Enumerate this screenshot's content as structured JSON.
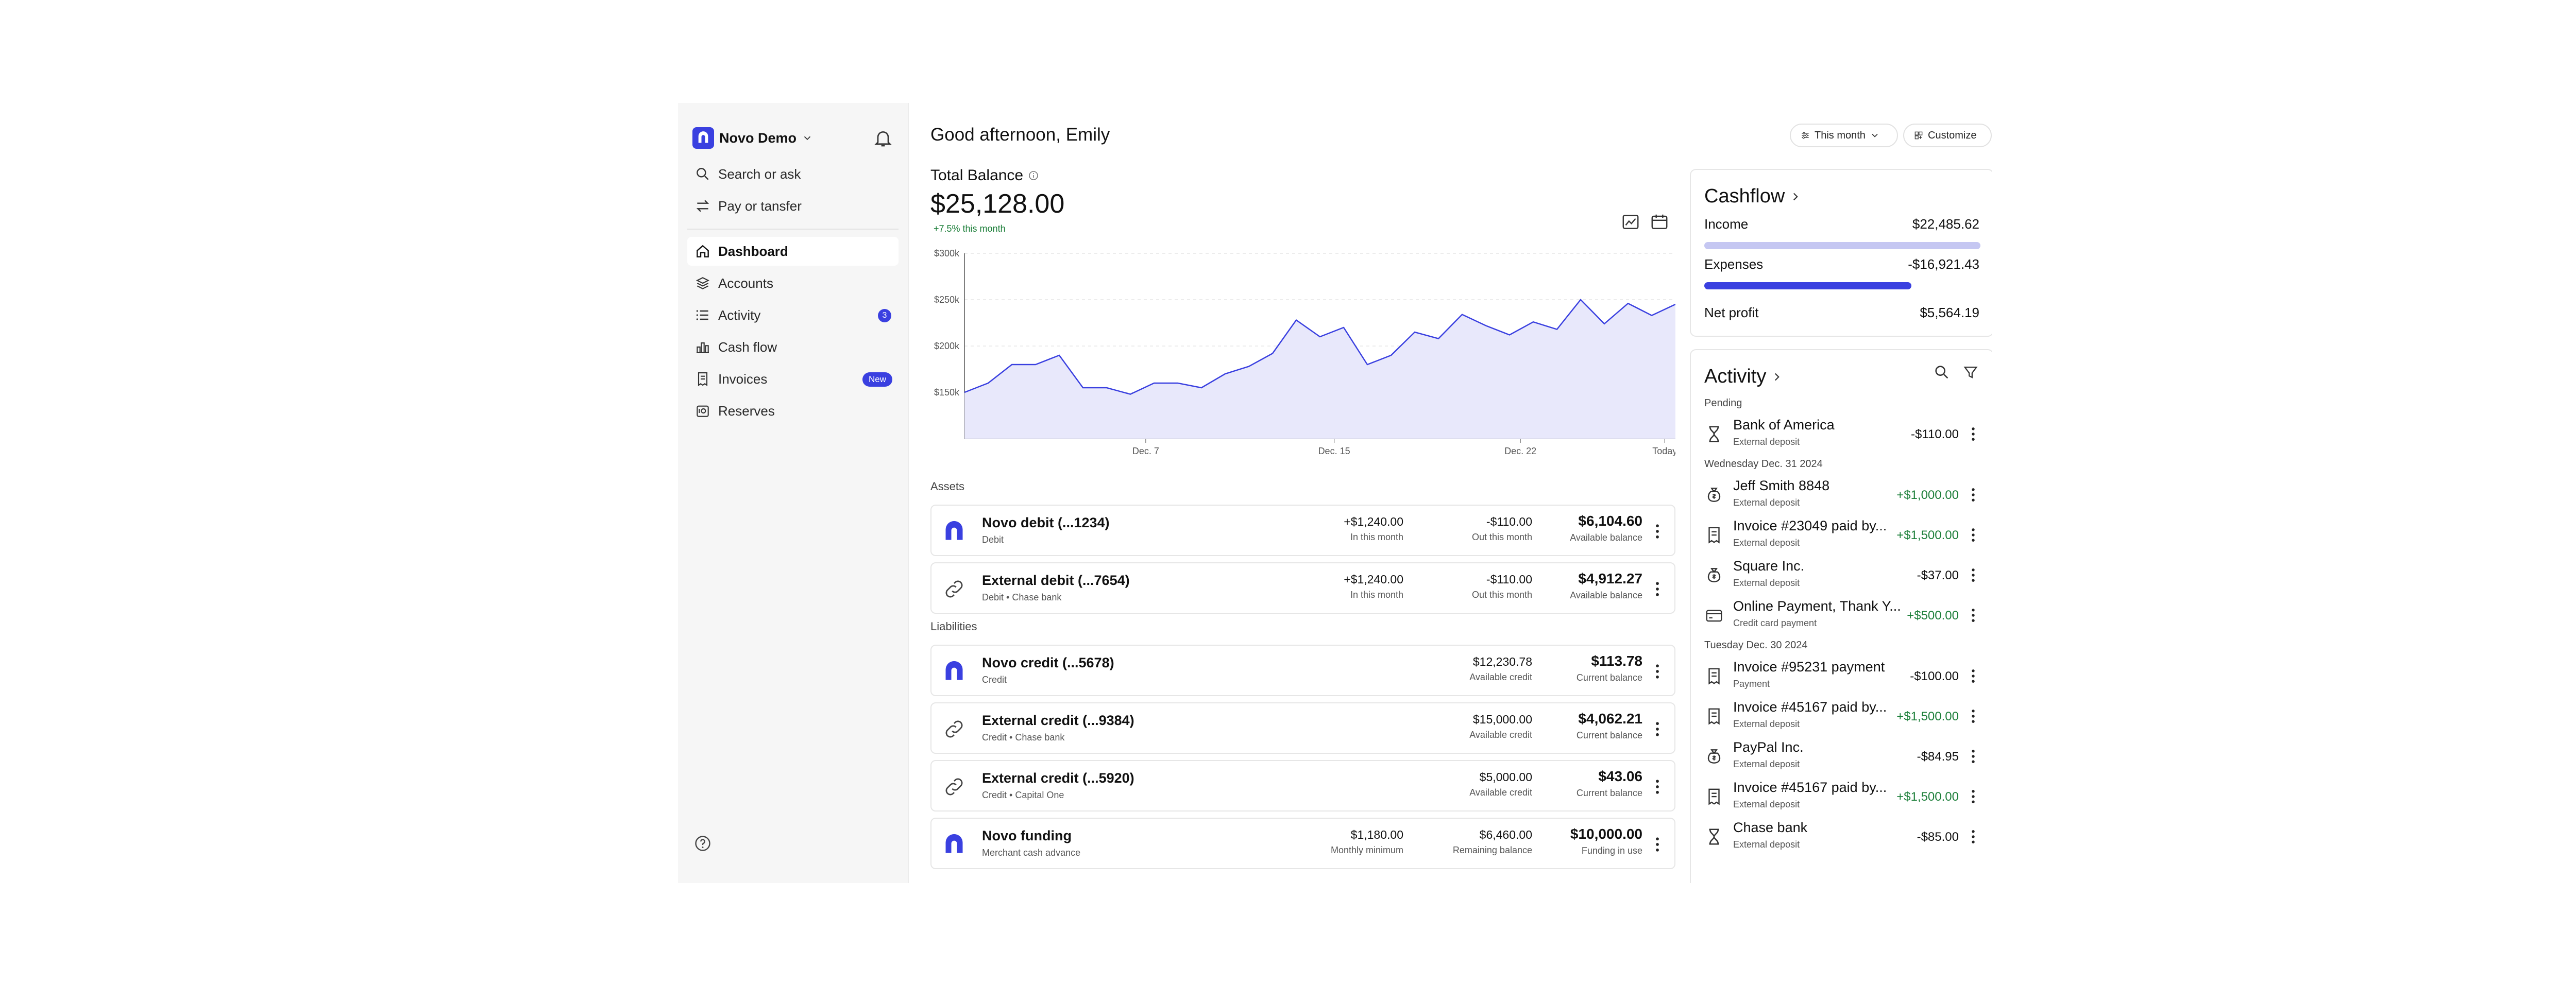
{
  "sidebar": {
    "org_name": "Novo Demo",
    "items": [
      {
        "label": "Search or ask",
        "icon": "search-icon"
      },
      {
        "label": "Pay or tansfer",
        "icon": "transfer-icon"
      },
      {
        "label": "Dashboard",
        "icon": "home-icon"
      },
      {
        "label": "Accounts",
        "icon": "layers-icon"
      },
      {
        "label": "Activity",
        "icon": "list-icon",
        "badge": "3"
      },
      {
        "label": "Cash flow",
        "icon": "bar-chart-icon"
      },
      {
        "label": "Invoices",
        "icon": "invoice-icon",
        "badge": "New"
      },
      {
        "label": "Reserves",
        "icon": "reserves-icon"
      }
    ]
  },
  "header": {
    "greeting": "Good afternoon, Emily",
    "period": "This month",
    "customize": "Customize"
  },
  "balance": {
    "label": "Total Balance",
    "value": "$25,128.00",
    "delta": "+7.5% this month"
  },
  "colors": {
    "accent": "#3a40e0",
    "positive": "#1d7f3a",
    "chart_fill": "#e8e8fb",
    "income_bar": "#c5c7f2"
  },
  "chart_data": {
    "type": "area",
    "y_ticks": [
      "$300k",
      "$250k",
      "$200k",
      "$150k"
    ],
    "x_ticks": [
      "Dec. 7",
      "Dec. 15",
      "Dec. 22",
      "Today"
    ],
    "ylim": [
      100000,
      300000
    ],
    "values": [
      150000,
      160000,
      180000,
      180000,
      190000,
      155000,
      155000,
      148000,
      160000,
      160000,
      155000,
      170000,
      178000,
      192000,
      228000,
      210000,
      220000,
      180000,
      190000,
      215000,
      208000,
      234000,
      222000,
      212000,
      226000,
      218000,
      250000,
      224000,
      246000,
      233000,
      245000
    ],
    "grid": true
  },
  "assets": {
    "label": "Assets",
    "items": [
      {
        "name": "Novo debit (...1234)",
        "sub": "Debit",
        "icon": "novo-logo-icon",
        "c1v": "+$1,240.00",
        "c1l": "In this month",
        "c2v": "-$110.00",
        "c2l": "Out this month",
        "bal": "$6,104.60",
        "ball": "Available balance"
      },
      {
        "name": "External debit (...7654)",
        "sub": "Debit • Chase bank",
        "icon": "link-icon",
        "c1v": "+$1,240.00",
        "c1l": "In this month",
        "c2v": "-$110.00",
        "c2l": "Out this month",
        "bal": "$4,912.27",
        "ball": "Available balance"
      }
    ]
  },
  "liabilities": {
    "label": "Liabilities",
    "items": [
      {
        "name": "Novo credit (...5678)",
        "sub": "Credit",
        "icon": "novo-logo-icon",
        "c1v": "",
        "c1l": "",
        "c2v": "$12,230.78",
        "c2l": "Available credit",
        "bal": "$113.78",
        "ball": "Current balance"
      },
      {
        "name": "External credit (...9384)",
        "sub": "Credit • Chase bank",
        "icon": "link-icon",
        "c1v": "",
        "c1l": "",
        "c2v": "$15,000.00",
        "c2l": "Available credit",
        "bal": "$4,062.21",
        "ball": "Current balance"
      },
      {
        "name": "External credit (...5920)",
        "sub": "Credit • Capital One",
        "icon": "link-icon",
        "c1v": "",
        "c1l": "",
        "c2v": "$5,000.00",
        "c2l": "Available credit",
        "bal": "$43.06",
        "ball": "Current balance"
      },
      {
        "name": "Novo funding",
        "sub": "Merchant cash advance",
        "icon": "novo-logo-icon",
        "c1v": "$1,180.00",
        "c1l": "Monthly minimum",
        "c2v": "$6,460.00",
        "c2l": "Remaining balance",
        "bal": "$10,000.00",
        "ball": "Funding in use"
      }
    ]
  },
  "cashflow": {
    "title": "Cashflow",
    "income_label": "Income",
    "income": "$22,485.62",
    "income_ratio": 1.0,
    "expenses_label": "Expenses",
    "expenses": "-$16,921.43",
    "expenses_ratio": 0.75,
    "net_label": "Net profit",
    "net": "$5,564.19"
  },
  "activity": {
    "title": "Activity",
    "groups": [
      {
        "label": "Pending",
        "items": [
          {
            "name": "Bank of America",
            "sub": "External deposit",
            "amount": "-$110.00",
            "icon": "hourglass-icon"
          }
        ]
      },
      {
        "label": "Wednesday Dec. 31 2024",
        "items": [
          {
            "name": "Jeff Smith 8848",
            "sub": "External deposit",
            "amount": "+$1,000.00",
            "icon": "money-bag-icon"
          },
          {
            "name": "Invoice #23049 paid by...",
            "sub": "External deposit",
            "amount": "+$1,500.00",
            "icon": "invoice-icon"
          },
          {
            "name": "Square Inc.",
            "sub": "External deposit",
            "amount": "-$37.00",
            "icon": "money-bag-icon"
          },
          {
            "name": "Online Payment, Thank Y...",
            "sub": "Credit card payment",
            "amount": "+$500.00",
            "icon": "credit-card-icon"
          }
        ]
      },
      {
        "label": "Tuesday Dec. 30 2024",
        "items": [
          {
            "name": "Invoice #95231 payment",
            "sub": "Payment",
            "amount": "-$100.00",
            "icon": "invoice-icon"
          },
          {
            "name": "Invoice #45167 paid by...",
            "sub": "External deposit",
            "amount": "+$1,500.00",
            "icon": "invoice-icon"
          },
          {
            "name": "PayPal Inc.",
            "sub": "External deposit",
            "amount": "-$84.95",
            "icon": "money-bag-icon"
          },
          {
            "name": "Invoice #45167 paid by...",
            "sub": "External deposit",
            "amount": "+$1,500.00",
            "icon": "invoice-icon"
          },
          {
            "name": "Chase bank",
            "sub": "External deposit",
            "amount": "-$85.00",
            "icon": "hourglass-icon"
          }
        ]
      }
    ]
  }
}
